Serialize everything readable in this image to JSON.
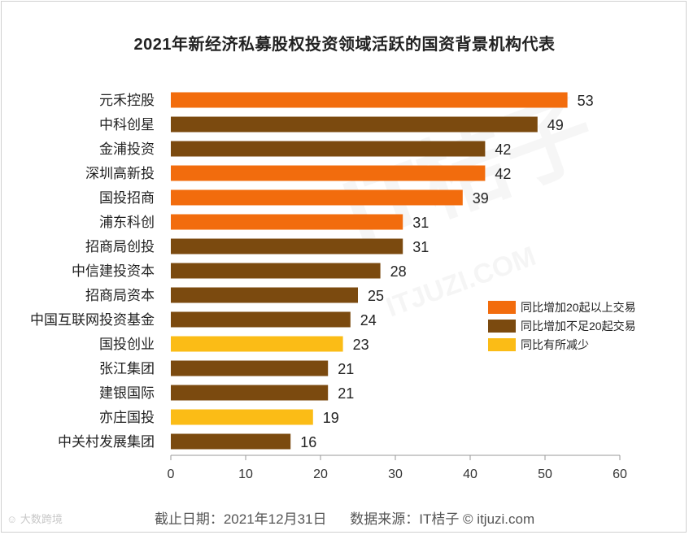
{
  "chart_data": {
    "type": "bar",
    "orientation": "horizontal",
    "title": "2021年新经济私募股权投资领域活跃的国资背景机构代表",
    "categories": [
      "元禾控股",
      "中科创星",
      "金浦投资",
      "深圳高新投",
      "国投招商",
      "浦东科创",
      "招商局创投",
      "中信建投资本",
      "招商局资本",
      "中国互联网投资基金",
      "国投创业",
      "张江集团",
      "建银国际",
      "亦庄国投",
      "中关村发展集团"
    ],
    "values": [
      53,
      49,
      42,
      42,
      39,
      31,
      31,
      28,
      25,
      24,
      23,
      21,
      21,
      19,
      16
    ],
    "groups": [
      "up20",
      "up_small",
      "up_small",
      "up20",
      "up20",
      "up20",
      "up_small",
      "up_small",
      "up_small",
      "up_small",
      "down",
      "up_small",
      "up_small",
      "down",
      "up_small"
    ],
    "legend": [
      {
        "key": "up20",
        "label": "同比增加20起以上交易",
        "color": "#f26c0d"
      },
      {
        "key": "up_small",
        "label": "同比增加不足20起交易",
        "color": "#7b4a0f"
      },
      {
        "key": "down",
        "label": "同比有所减少",
        "color": "#fbbc16"
      }
    ],
    "xlim": [
      0,
      60
    ],
    "xticks": [
      0,
      10,
      20,
      30,
      40,
      50,
      60
    ],
    "legend_position": "right",
    "grid": false
  },
  "footer": {
    "date": "截止日期：2021年12月31日",
    "source": "数据来源：IT桔子 © itjuzi.com"
  },
  "watermarks": {
    "center": "IT桔子",
    "url": "ITJUZI.COM",
    "corner": "大数跨境"
  }
}
